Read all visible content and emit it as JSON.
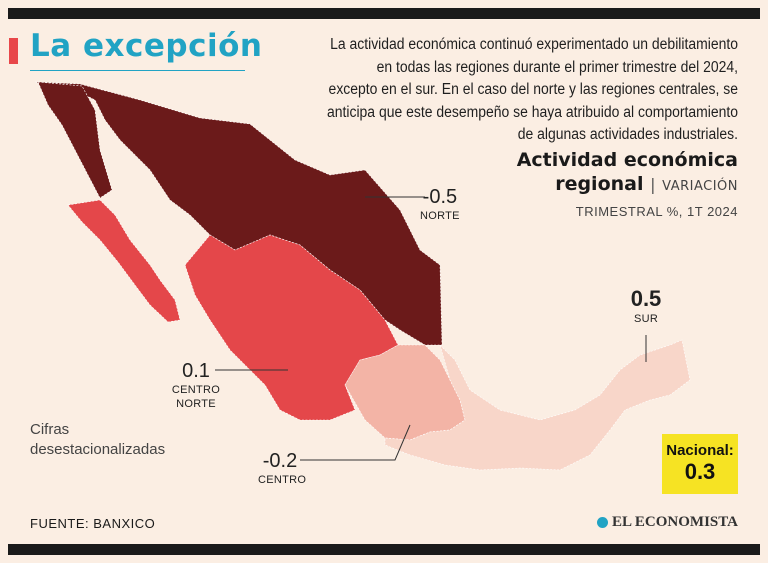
{
  "headline": "La excepción",
  "intro": "La actividad económica continuó experimentado un debilitamiento en todas las regiones durante el primer trimestre del 2024, excepto en el sur. En el caso del norte y las regiones centrales, se anticipa que este desempeño se haya atribuido al comportamiento de algunas actividades industriales.",
  "chart": {
    "title_line1": "Actividad económica",
    "title_line2": "regional",
    "separator": "|",
    "subtitle_line1": "VARIACIÓN",
    "subtitle_line2": "TRIMESTRAL %, 1T 2024"
  },
  "regions": [
    {
      "name": "NORTE",
      "value": "-0.5",
      "color": "#6b1a1a"
    },
    {
      "name": "CENTRO NORTE",
      "value": "0.1",
      "color": "#e4474a"
    },
    {
      "name": "CENTRO",
      "value": "-0.2",
      "color": "#f3b4a6"
    },
    {
      "name": "SUR",
      "value": "0.5",
      "color": "#f8d6c9"
    }
  ],
  "note": "Cifras desestacionalizadas",
  "nacional": {
    "label": "Nacional:",
    "value": "0.3",
    "color": "#f6e323"
  },
  "source": "FUENTE: BANXICO",
  "brand": "EL ECONOMISTA"
}
